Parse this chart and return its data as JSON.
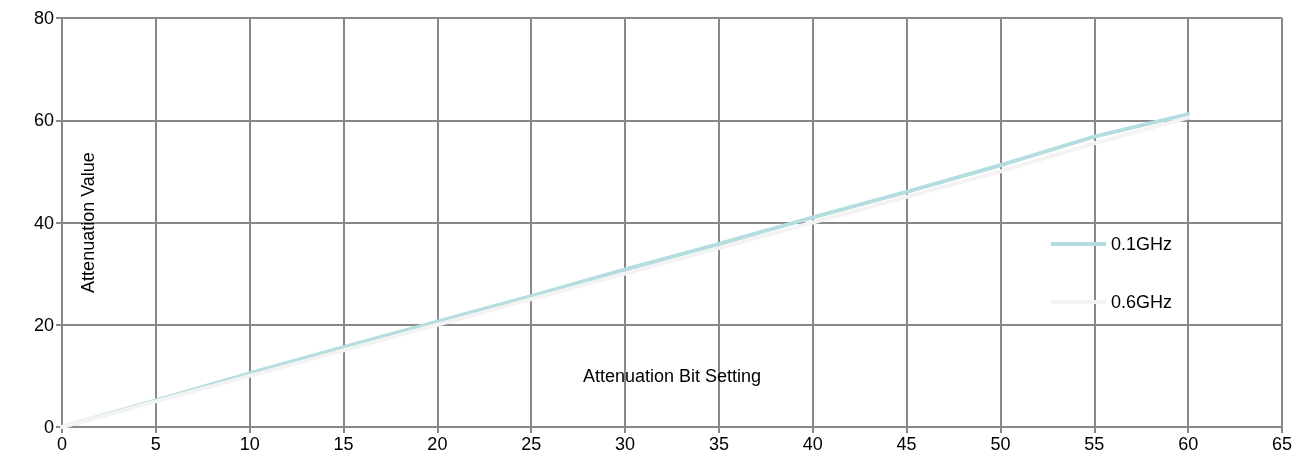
{
  "chart_data": {
    "type": "line",
    "xlabel": "Attenuation Bit Setting",
    "ylabel": "Attenuation Value",
    "x": [
      0,
      5,
      10,
      15,
      20,
      25,
      30,
      35,
      40,
      45,
      50,
      55,
      60
    ],
    "series": [
      {
        "name": "0.1GHz",
        "color": "#b4dde0",
        "values": [
          0,
          5.2,
          10.5,
          15.6,
          20.6,
          25.6,
          30.8,
          35.8,
          41,
          46,
          51.2,
          56.8,
          61.2
        ]
      },
      {
        "name": "0.6GHz",
        "color": "#f3f3f3",
        "values": [
          0,
          5,
          10,
          15,
          20,
          25,
          30,
          35,
          40,
          45,
          50,
          55.5,
          60.5
        ]
      }
    ],
    "xlim": [
      0,
      65
    ],
    "xticks": [
      0,
      5,
      10,
      15,
      20,
      25,
      30,
      35,
      40,
      45,
      50,
      55,
      60,
      65
    ],
    "ylim": [
      0,
      80
    ],
    "yticks": [
      0,
      20,
      40,
      60,
      80
    ],
    "grid": true,
    "legend": "right",
    "marker": "none",
    "line_style": "solid"
  }
}
